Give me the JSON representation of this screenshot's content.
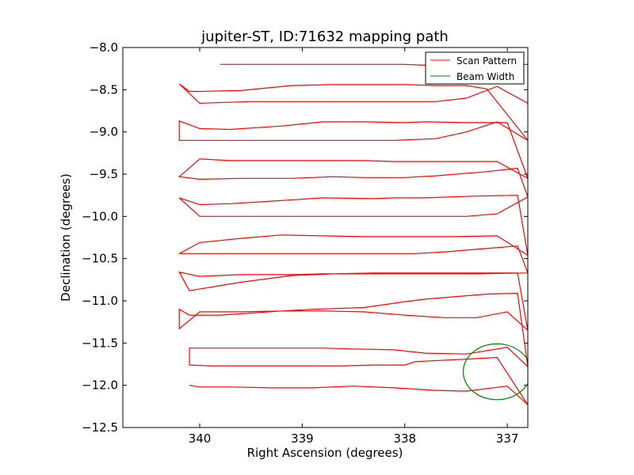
{
  "chart_data": {
    "type": "line",
    "title": "jupiter-ST, ID:71632 mapping path",
    "xlabel": "Right Ascension (degrees)",
    "ylabel": "Declination (degrees)",
    "x_inverted": true,
    "xlim": [
      340.75,
      336.8
    ],
    "ylim": [
      -12.5,
      -8.0
    ],
    "x_ticks": [
      340,
      339,
      338,
      337
    ],
    "x_tick_labels": [
      "340",
      "339",
      "338",
      "337"
    ],
    "y_ticks": [
      -8.0,
      -8.5,
      -9.0,
      -9.5,
      -10.0,
      -10.5,
      -11.0,
      -11.5,
      -12.0,
      -12.5
    ],
    "y_tick_labels": [
      "−8.0",
      "−8.5",
      "−9.0",
      "−9.5",
      "−10.0",
      "−10.5",
      "−11.0",
      "−11.5",
      "−12.0",
      "−12.5"
    ],
    "legend": {
      "position": "top-right",
      "entries": [
        "Scan Pattern",
        "Beam Width"
      ]
    },
    "grid": false,
    "series": [
      {
        "name": "Scan Pattern",
        "color": "#ff0000",
        "kind": "line",
        "x": [
          339.8,
          339.4,
          339.0,
          338.7,
          338.3,
          338.0,
          337.8,
          337.4,
          336.8,
          336.8,
          337.1,
          337.4,
          337.7,
          338.1,
          338.4,
          338.7,
          339.1,
          339.5,
          340.0,
          340.2,
          340.1,
          340.0,
          339.6,
          339.1,
          338.7,
          338.3,
          338.0,
          337.7,
          337.4,
          337.2,
          336.8,
          337.1,
          337.4,
          337.7,
          338.1,
          338.4,
          338.8,
          339.0,
          339.5,
          340.0,
          340.2,
          340.2,
          340.0,
          339.7,
          339.2,
          338.8,
          338.4,
          338.0,
          337.8,
          337.4,
          337.0,
          336.8,
          337.1,
          337.4,
          337.7,
          338.1,
          338.4,
          338.7,
          339.0,
          339.4,
          339.7,
          340.0,
          340.2,
          340.0,
          339.6,
          339.1,
          338.7,
          338.4,
          338.0,
          337.7,
          337.2,
          336.9,
          336.8,
          337.1,
          337.4,
          337.7,
          338.1,
          338.5,
          338.8,
          339.2,
          339.6,
          340.0,
          340.2,
          340.0,
          339.7,
          339.3,
          338.8,
          338.3,
          338.1,
          337.8,
          337.3,
          336.9,
          336.8,
          337.1,
          337.5,
          337.8,
          338.1,
          338.4,
          338.8,
          339.2,
          339.6,
          340.0,
          340.2,
          340.0,
          339.7,
          339.2,
          338.8,
          338.5,
          338.2,
          337.9,
          337.6,
          337.3,
          336.9,
          336.8,
          337.3,
          337.5,
          337.7,
          338.1,
          338.5,
          338.8,
          339.1,
          339.6,
          340.0,
          340.2,
          340.1,
          339.6,
          339.1,
          338.7,
          338.3,
          337.9,
          337.7,
          337.3,
          336.9,
          336.8,
          337.0,
          337.3,
          337.6,
          338.0,
          338.4,
          338.8,
          339.2,
          339.6,
          340.0,
          340.2,
          340.2,
          340.1,
          339.8,
          339.2,
          338.9,
          338.4,
          338.0,
          337.8,
          337.2,
          336.9,
          336.8,
          337.0,
          337.4,
          337.8,
          338.1,
          338.5,
          338.8,
          339.2,
          339.6,
          339.9,
          340.1,
          340.1,
          339.9,
          339.5,
          339.0,
          338.6,
          338.3,
          338.0,
          337.9,
          337.4,
          337.1,
          336.8,
          337.0,
          337.4,
          337.7,
          338.1,
          338.5,
          338.9,
          339.3,
          339.7,
          340.0,
          340.1
        ],
        "y": [
          -8.2,
          -8.2,
          -8.2,
          -8.2,
          -8.2,
          -8.2,
          -8.21,
          -8.21,
          -8.2,
          -8.66,
          -8.46,
          -8.6,
          -8.64,
          -8.64,
          -8.64,
          -8.64,
          -8.64,
          -8.64,
          -8.66,
          -8.43,
          -8.52,
          -8.52,
          -8.51,
          -8.45,
          -8.44,
          -8.44,
          -8.44,
          -8.45,
          -8.45,
          -8.49,
          -9.1,
          -8.88,
          -9.0,
          -9.08,
          -9.1,
          -9.1,
          -9.1,
          -9.1,
          -9.1,
          -9.1,
          -9.1,
          -8.87,
          -8.96,
          -8.97,
          -8.93,
          -8.88,
          -8.88,
          -8.89,
          -8.88,
          -8.89,
          -8.89,
          -9.55,
          -9.35,
          -9.35,
          -9.35,
          -9.35,
          -9.34,
          -9.34,
          -9.34,
          -9.34,
          -9.34,
          -9.32,
          -9.53,
          -9.56,
          -9.55,
          -9.55,
          -9.53,
          -9.54,
          -9.54,
          -9.52,
          -9.47,
          -9.43,
          -9.77,
          -9.97,
          -10.0,
          -10.0,
          -10.0,
          -10.0,
          -10.0,
          -10.0,
          -10.0,
          -10.0,
          -9.78,
          -9.86,
          -9.85,
          -9.82,
          -9.78,
          -9.79,
          -9.78,
          -9.78,
          -9.76,
          -9.75,
          -10.46,
          -10.23,
          -10.24,
          -10.24,
          -10.24,
          -10.24,
          -10.23,
          -10.22,
          -10.26,
          -10.31,
          -10.44,
          -10.44,
          -10.44,
          -10.44,
          -10.44,
          -10.44,
          -10.44,
          -10.44,
          -10.42,
          -10.39,
          -10.35,
          -10.67,
          -10.68,
          -10.68,
          -10.68,
          -10.68,
          -10.68,
          -10.68,
          -10.69,
          -10.69,
          -10.71,
          -10.66,
          -10.88,
          -10.78,
          -10.7,
          -10.68,
          -10.67,
          -10.67,
          -10.67,
          -10.67,
          -10.67,
          -11.35,
          -11.13,
          -11.2,
          -11.2,
          -11.17,
          -11.13,
          -11.12,
          -11.12,
          -11.13,
          -11.13,
          -11.33,
          -11.1,
          -11.17,
          -11.17,
          -11.12,
          -11.1,
          -11.08,
          -11.01,
          -10.98,
          -10.92,
          -10.91,
          -11.78,
          -11.55,
          -11.63,
          -11.62,
          -11.58,
          -11.57,
          -11.56,
          -11.56,
          -11.56,
          -11.56,
          -11.56,
          -11.76,
          -11.77,
          -11.77,
          -11.77,
          -11.77,
          -11.76,
          -11.76,
          -11.72,
          -11.69,
          -11.67,
          -12.23,
          -12.01,
          -12.07,
          -12.06,
          -12.03,
          -12.01,
          -12.03,
          -12.03,
          -12.02,
          -12.02,
          -12.0
        ]
      },
      {
        "name": "Beam Width",
        "color": "#008000",
        "kind": "circle",
        "center": [
          337.1,
          -11.84
        ],
        "radius_deg": 0.33
      }
    ]
  }
}
